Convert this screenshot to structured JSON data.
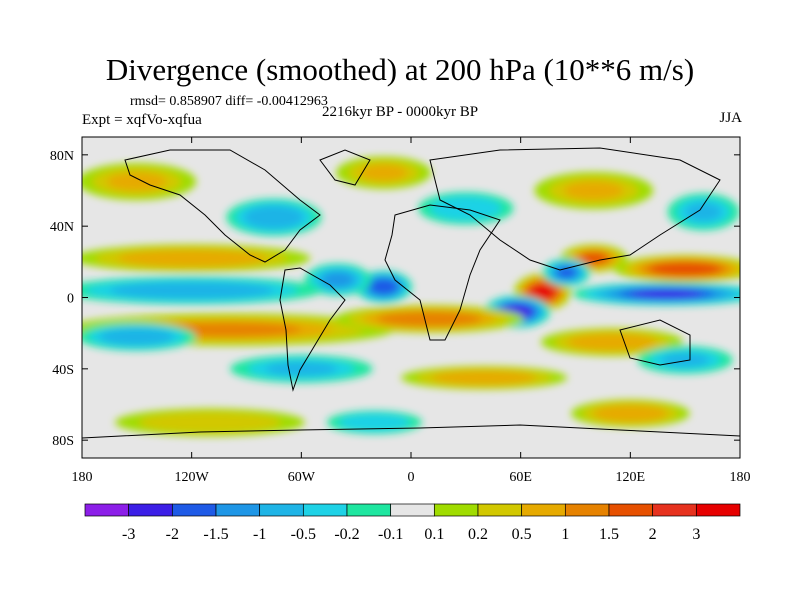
{
  "title": "Divergence (smoothed) at 200 hPa (10**6 m/s)",
  "stats": "rmsd= 0.858907 diff= -0.00412963",
  "experiment": "Expt = xqfVo-xqfua",
  "period": "2216kyr BP - 0000kyr BP",
  "season": "JJA",
  "chart_data": {
    "type": "heatmap",
    "projection": "cylindrical-equidistant",
    "lon_range": [
      -180,
      180
    ],
    "lat_range": [
      -90,
      90
    ],
    "x_ticks": [
      {
        "value": -180,
        "label": "180"
      },
      {
        "value": -120,
        "label": "120W"
      },
      {
        "value": -60,
        "label": "60W"
      },
      {
        "value": 0,
        "label": "0"
      },
      {
        "value": 60,
        "label": "60E"
      },
      {
        "value": 120,
        "label": "120E"
      },
      {
        "value": 180,
        "label": "180"
      }
    ],
    "y_ticks": [
      {
        "value": 80,
        "label": "80N"
      },
      {
        "value": 40,
        "label": "40N"
      },
      {
        "value": 0,
        "label": "0"
      },
      {
        "value": -40,
        "label": "40S"
      },
      {
        "value": -80,
        "label": "80S"
      }
    ],
    "colorbar": {
      "levels": [
        "-3",
        "-2",
        "-1.5",
        "-1",
        "-0.5",
        "-0.2",
        "-0.1",
        "0.1",
        "0.2",
        "0.5",
        "1",
        "1.5",
        "2",
        "3"
      ],
      "colors": [
        "#8c1ee8",
        "#3c1ee6",
        "#1e5ae6",
        "#1e96e6",
        "#1eb4e6",
        "#1ed2e6",
        "#1ee6a0",
        "#e6e6e6",
        "#a0dc00",
        "#d2c800",
        "#e6aa00",
        "#e68200",
        "#e65000",
        "#e6321e",
        "#e60000"
      ]
    },
    "field_blobs": [
      {
        "lon": 72,
        "lat": 3,
        "rlon": 12,
        "rlat": 8,
        "value": 3
      },
      {
        "lon": 58,
        "lat": -8,
        "rlon": 14,
        "rlat": 7,
        "value": -2.5
      },
      {
        "lon": 140,
        "lat": 2,
        "rlon": 40,
        "rlat": 5,
        "value": -2
      },
      {
        "lon": 150,
        "lat": 16,
        "rlon": 30,
        "rlat": 6,
        "value": 1.7
      },
      {
        "lon": 100,
        "lat": 22,
        "rlon": 14,
        "rlat": 6,
        "value": 1.5
      },
      {
        "lon": 85,
        "lat": 14,
        "rlon": 10,
        "rlat": 6,
        "value": -1.5
      },
      {
        "lon": -15,
        "lat": 6,
        "rlon": 12,
        "rlat": 7,
        "value": -1.7
      },
      {
        "lon": -40,
        "lat": 10,
        "rlon": 14,
        "rlat": 7,
        "value": -1
      },
      {
        "lon": -120,
        "lat": 4,
        "rlon": 55,
        "rlat": 6,
        "value": -0.7
      },
      {
        "lon": -120,
        "lat": 22,
        "rlon": 50,
        "rlat": 6,
        "value": 0.8
      },
      {
        "lon": -100,
        "lat": -18,
        "rlon": 70,
        "rlat": 7,
        "value": 1
      },
      {
        "lon": 10,
        "lat": -12,
        "rlon": 40,
        "rlat": 6,
        "value": 1.2
      },
      {
        "lon": -150,
        "lat": -22,
        "rlon": 25,
        "rlat": 6,
        "value": -0.6
      },
      {
        "lon": 40,
        "lat": -45,
        "rlon": 35,
        "rlat": 5,
        "value": 0.6
      },
      {
        "lon": -60,
        "lat": -40,
        "rlon": 30,
        "rlat": 6,
        "value": -0.5
      },
      {
        "lon": 110,
        "lat": -25,
        "rlon": 30,
        "rlat": 6,
        "value": 0.8
      },
      {
        "lon": 150,
        "lat": -35,
        "rlon": 20,
        "rlat": 6,
        "value": -0.5
      },
      {
        "lon": -150,
        "lat": 65,
        "rlon": 25,
        "rlat": 8,
        "value": 0.5
      },
      {
        "lon": -75,
        "lat": 45,
        "rlon": 20,
        "rlat": 8,
        "value": -0.6
      },
      {
        "lon": -15,
        "lat": 70,
        "rlon": 20,
        "rlat": 7,
        "value": 0.5
      },
      {
        "lon": 30,
        "lat": 50,
        "rlon": 20,
        "rlat": 7,
        "value": -0.4
      },
      {
        "lon": 100,
        "lat": 60,
        "rlon": 25,
        "rlat": 8,
        "value": 0.5
      },
      {
        "lon": 160,
        "lat": 48,
        "rlon": 15,
        "rlat": 8,
        "value": -0.5
      },
      {
        "lon": -110,
        "lat": -70,
        "rlon": 40,
        "rlat": 6,
        "value": 0.3
      },
      {
        "lon": 120,
        "lat": -65,
        "rlon": 25,
        "rlat": 6,
        "value": 0.6
      },
      {
        "lon": -20,
        "lat": -70,
        "rlon": 20,
        "rlat": 5,
        "value": -0.3
      }
    ]
  }
}
